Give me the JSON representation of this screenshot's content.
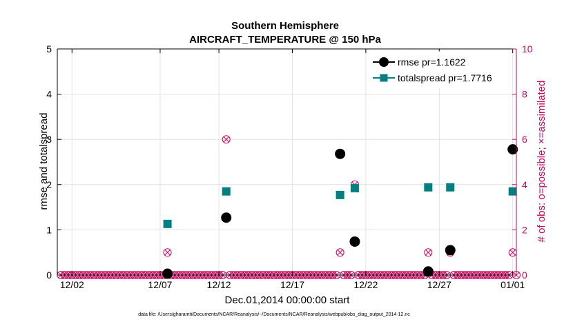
{
  "chart_data": {
    "type": "scatter",
    "title": "Southern Hemisphere",
    "subtitle": "AIRCRAFT_TEMPERATURE @ 150 hPa",
    "xlabel": "Dec.01,2014 00:00:00 start",
    "ylabel_left": "rmse and totalspread",
    "ylabel_right": "# of obs: o=possible; ×=assimilated",
    "footnote": "data file: /Users/gharamti/Documents/NCAR/Reanalysis/~/Documents/NCAR/Reanalysis/webpub/obs_diag_output_2014-12.nc",
    "xlim": [
      0.5,
      31.75
    ],
    "ylim_left": [
      0,
      5
    ],
    "ylim_right": [
      0,
      10
    ],
    "xticks": [
      1.5,
      7.5,
      11.5,
      16.5,
      21.5,
      26.5,
      31.5
    ],
    "xtick_labels": [
      "12/02",
      "12/07",
      "12/12",
      "12/17",
      "12/22",
      "12/27",
      "01/01"
    ],
    "yticks_left": [
      0,
      1,
      2,
      3,
      4,
      5
    ],
    "yticks_right": [
      0,
      2,
      4,
      6,
      8,
      10
    ],
    "grid": true,
    "legend_position": "top-right",
    "colors": {
      "rmse": "#000000",
      "totalspread": "#008080",
      "obs": "#d6005a",
      "axis": "#000000"
    },
    "series": [
      {
        "name": "rmse pr=1.1622",
        "marker": "circle",
        "points": [
          [
            8.0,
            0.03
          ],
          [
            12.0,
            1.27
          ],
          [
            19.75,
            2.68
          ],
          [
            20.75,
            0.74
          ],
          [
            25.75,
            0.08
          ],
          [
            27.25,
            0.55
          ],
          [
            31.5,
            2.78
          ]
        ]
      },
      {
        "name": "totalspread pr=1.7716",
        "marker": "square",
        "points": [
          [
            8.0,
            1.13
          ],
          [
            12.0,
            1.85
          ],
          [
            19.75,
            1.77
          ],
          [
            20.75,
            1.92
          ],
          [
            25.75,
            1.94
          ],
          [
            27.25,
            1.94
          ],
          [
            31.5,
            1.85
          ]
        ]
      }
    ],
    "obs_counts": {
      "start": 0.75,
      "step": 0.25,
      "end": 31.75,
      "nonzero": [
        [
          8.0,
          1
        ],
        [
          12.0,
          6
        ],
        [
          19.75,
          1
        ],
        [
          20.75,
          4
        ],
        [
          25.75,
          1
        ],
        [
          27.25,
          1
        ],
        [
          31.5,
          1
        ]
      ]
    }
  }
}
